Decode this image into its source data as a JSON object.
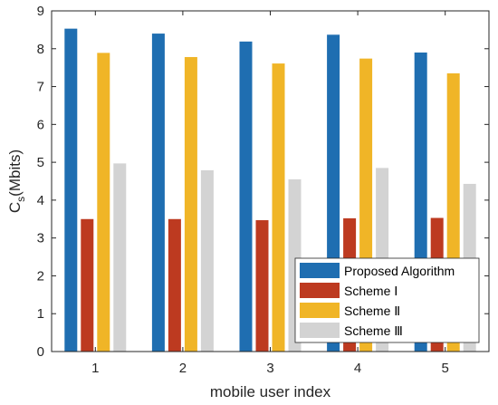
{
  "chart_data": {
    "type": "bar",
    "categories": [
      "1",
      "2",
      "3",
      "4",
      "5"
    ],
    "series": [
      {
        "name": "Proposed Algorithm",
        "color": "#1f6eb1",
        "values": [
          8.53,
          8.4,
          8.19,
          8.37,
          7.9
        ]
      },
      {
        "name": "Scheme Ⅰ",
        "color": "#bd3a20",
        "values": [
          3.5,
          3.5,
          3.47,
          3.52,
          3.53
        ]
      },
      {
        "name": "Scheme Ⅱ",
        "color": "#f0b527",
        "values": [
          7.89,
          7.78,
          7.61,
          7.74,
          7.35
        ]
      },
      {
        "name": "Scheme Ⅲ",
        "color": "#d3d3d3",
        "values": [
          4.97,
          4.79,
          4.55,
          4.85,
          4.43
        ]
      }
    ],
    "xlabel": "mobile user index",
    "ylabel_main": "C",
    "ylabel_sub": "s",
    "ylabel_rest": "(Mbits)",
    "ylim": [
      0,
      9
    ],
    "yticks": [
      0,
      1,
      2,
      3,
      4,
      5,
      6,
      7,
      8,
      9
    ],
    "grid": false,
    "legend_position": "bottom-right"
  }
}
